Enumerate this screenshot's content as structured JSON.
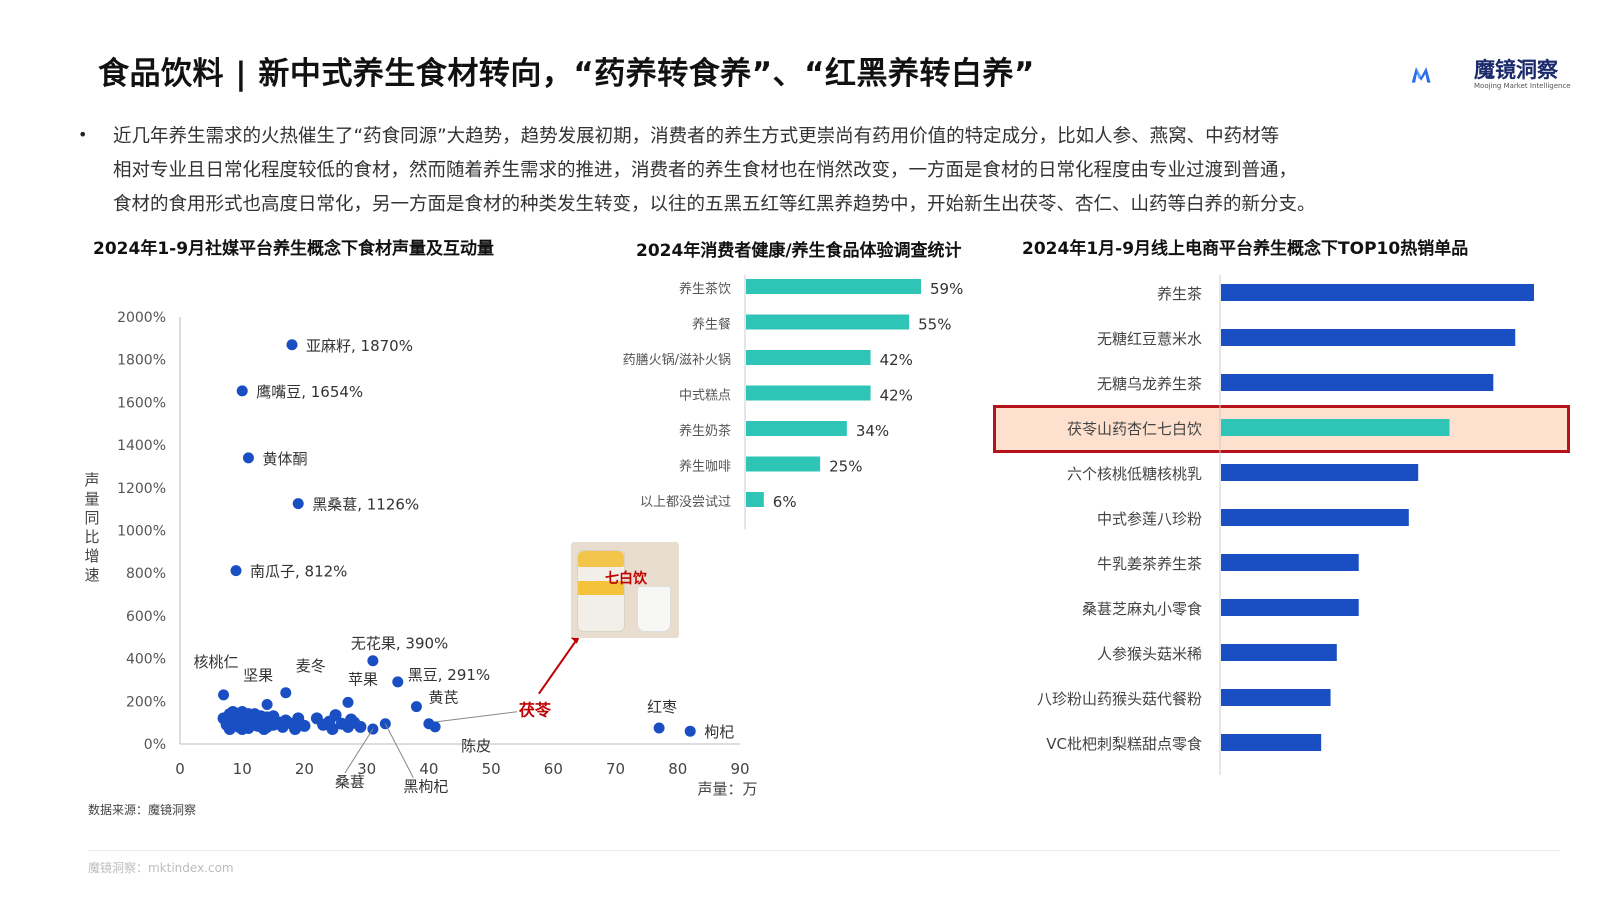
{
  "page": {
    "title": "食品饮料 | 新中式养生食材转向，“药养转食养”、“红黑养转白养”",
    "logo_text": "魔镜洞察",
    "logo_sub": "Moojing Market Intelligence",
    "bullet_lines": [
      "近几年养生需求的火热催生了“药食同源”大趋势，趋势发展初期，消费者的养生方式更崇尚有药用价值的特定成分，比如人参、燕窝、中药材等",
      "相对专业且日常化程度较低的食材，然而随着养生需求的推进，消费者的养生食材也在悄然改变，一方面是食材的日常化程度由专业过渡到普通，",
      "食材的食用形式也高度日常化，另一方面是食材的种类发生转变，以往的五黑五红等红黑养趋势中，开始新生出茯苓、杏仁、山药等白养的新分支。"
    ],
    "source": "数据来源：魔镜洞察",
    "footer": "魔镜洞察：mktindex.com",
    "photo_label": "七白饮",
    "colors": {
      "scatter": "#1a4fc4",
      "teal": "#2ec4b6",
      "blue": "#1a4fc4",
      "highlight_border": "#b5121b",
      "highlight_fill": "#fde0cd",
      "arrow": "#c00000"
    }
  },
  "chart_data": [
    {
      "type": "scatter",
      "title": "2024年1-9月社媒平台养生概念下食材声量及互动量",
      "xlabel": "声量：万",
      "ylabel": "声量同比增速",
      "xlim": [
        0,
        90
      ],
      "ylim": [
        0,
        2000
      ],
      "xticks": [
        "0",
        "10",
        "20",
        "30",
        "40",
        "50",
        "60",
        "70",
        "80",
        "90"
      ],
      "yticks": [
        "0%",
        "200%",
        "400%",
        "600%",
        "800%",
        "1000%",
        "1200%",
        "1400%",
        "1600%",
        "1800%",
        "2000%"
      ],
      "labeled_points": [
        {
          "label": "亚麻籽, 1870%",
          "x": 18,
          "y": 1870
        },
        {
          "label": "鹰嘴豆, 1654%",
          "x": 10,
          "y": 1654
        },
        {
          "label": "黄体酮",
          "x": 11,
          "y": 1340
        },
        {
          "label": "黑桑葚, 1126%",
          "x": 19,
          "y": 1126
        },
        {
          "label": "南瓜子, 812%",
          "x": 9,
          "y": 812
        },
        {
          "label": "无花果, 390%",
          "x": 31,
          "y": 390
        },
        {
          "label": "黑豆, 291%",
          "x": 35,
          "y": 291
        },
        {
          "label": "核桃仁",
          "x": 7,
          "y": 230
        },
        {
          "label": "坚果",
          "x": 14,
          "y": 185
        },
        {
          "label": "麦冬",
          "x": 17,
          "y": 240
        },
        {
          "label": "苹果",
          "x": 27,
          "y": 195
        },
        {
          "label": "黄芪",
          "x": 38,
          "y": 175
        },
        {
          "label": "茯苓",
          "x": 40,
          "y": 95
        },
        {
          "label": "陈皮",
          "x": 41,
          "y": 80
        },
        {
          "label": "桑葚",
          "x": 31,
          "y": 70
        },
        {
          "label": "黑枸杞",
          "x": 33,
          "y": 95
        },
        {
          "label": "红枣",
          "x": 77,
          "y": 75
        },
        {
          "label": "枸杞",
          "x": 82,
          "y": 60
        }
      ],
      "cluster_points": [
        [
          7,
          120
        ],
        [
          7.5,
          90
        ],
        [
          8,
          140
        ],
        [
          8,
          70
        ],
        [
          8.5,
          110
        ],
        [
          9,
          100
        ],
        [
          9,
          130
        ],
        [
          9.5,
          80
        ],
        [
          10,
          120
        ],
        [
          10,
          150
        ],
        [
          10.5,
          95
        ],
        [
          11,
          110
        ],
        [
          11,
          75
        ],
        [
          11.5,
          130
        ],
        [
          12,
          100
        ],
        [
          12,
          140
        ],
        [
          12.5,
          85
        ],
        [
          13,
          115
        ],
        [
          13,
          95
        ],
        [
          13.5,
          70
        ],
        [
          14,
          125
        ],
        [
          14.5,
          100
        ],
        [
          15,
          90
        ],
        [
          15,
          130
        ],
        [
          16,
          100
        ],
        [
          16.5,
          80
        ],
        [
          17,
          110
        ],
        [
          18,
          95
        ],
        [
          18.5,
          70
        ],
        [
          19,
          120
        ],
        [
          20,
          85
        ],
        [
          22,
          120
        ],
        [
          23,
          90
        ],
        [
          24,
          105
        ],
        [
          24.5,
          70
        ],
        [
          25,
          135
        ],
        [
          26,
          95
        ],
        [
          27,
          80
        ],
        [
          27.5,
          115
        ],
        [
          28,
          100
        ],
        [
          29,
          80
        ],
        [
          9,
          90
        ],
        [
          10,
          70
        ],
        [
          12,
          120
        ],
        [
          14,
          80
        ],
        [
          8.5,
          150
        ],
        [
          11,
          140
        ],
        [
          13,
          130
        ]
      ],
      "annotation": "茯苓"
    },
    {
      "type": "bar",
      "title": "2024年消费者健康/养生食品体验调查统计",
      "categories": [
        "养生茶饮",
        "养生餐",
        "药膳火锅/滋补火锅",
        "中式糕点",
        "养生奶茶",
        "养生咖啡",
        "以上都没尝试过"
      ],
      "values": [
        59,
        55,
        42,
        42,
        34,
        25,
        6
      ],
      "value_labels": [
        "59%",
        "55%",
        "42%",
        "42%",
        "34%",
        "25%",
        "6%"
      ],
      "orientation": "horizontal"
    },
    {
      "type": "bar",
      "title": "2024年1月-9月线上电商平台养生概念下TOP10热销单品",
      "categories": [
        "养生茶",
        "无糖红豆薏米水",
        "无糖乌龙养生茶",
        "茯苓山药杏仁七白饮",
        "六个核桃低糖核桃乳",
        "中式参莲八珍粉",
        "牛乳姜茶养生茶",
        "桑葚芝麻丸小零食",
        "人参猴头菇米稀",
        "八珍粉山药猴头菇代餐粉",
        "VC枇杷刺梨糕甜点零食"
      ],
      "values": [
        100,
        94,
        87,
        73,
        63,
        60,
        44,
        44,
        37,
        35,
        32
      ],
      "highlight": "茯苓山药杏仁七白饮",
      "orientation": "horizontal"
    }
  ]
}
